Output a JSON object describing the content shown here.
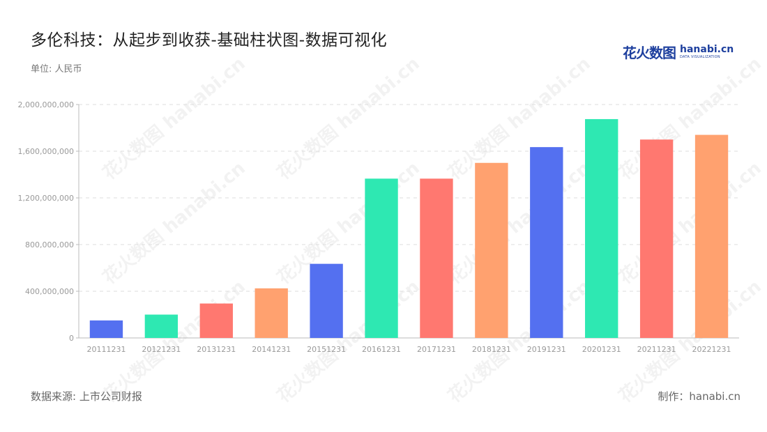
{
  "header": {
    "title": "多伦科技：从起步到收获-基础柱状图-数据可视化",
    "unit": "单位: 人民币"
  },
  "logo": {
    "cn": "花火数图",
    "en": "hanabi.cn",
    "sub": "DATA VISUALIZATION"
  },
  "footer": {
    "source": "数据来源: 上市公司财报",
    "credit": "制作：hanabi.cn"
  },
  "watermark_text": "花火数图 hanabi.cn",
  "colors": {
    "palette": [
      "#5470f0",
      "#2ee8b2",
      "#ff7870",
      "#ffa16f"
    ],
    "grid": "#dddddd",
    "axis": "#bbbbbb"
  },
  "chart_data": {
    "type": "bar",
    "categories": [
      "20111231",
      "20121231",
      "20131231",
      "20141231",
      "20151231",
      "20161231",
      "20171231",
      "20181231",
      "20191231",
      "20201231",
      "20211231",
      "20221231"
    ],
    "values": [
      150000000,
      200000000,
      295000000,
      425000000,
      635000000,
      1365000000,
      1365000000,
      1500000000,
      1635000000,
      1875000000,
      1700000000,
      1740000000
    ],
    "bar_colors": [
      "#5470f0",
      "#2ee8b2",
      "#ff7870",
      "#ffa16f",
      "#5470f0",
      "#2ee8b2",
      "#ff7870",
      "#ffa16f",
      "#5470f0",
      "#2ee8b2",
      "#ff7870",
      "#ffa16f"
    ],
    "ylim": [
      0,
      2000000000
    ],
    "yticks": [
      0,
      400000000,
      800000000,
      1200000000,
      1600000000,
      2000000000
    ],
    "ytick_labels": [
      "0",
      "400,000,000",
      "800,000,000",
      "1,200,000,000",
      "1,600,000,000",
      "2,000,000,000"
    ],
    "grid": true
  }
}
